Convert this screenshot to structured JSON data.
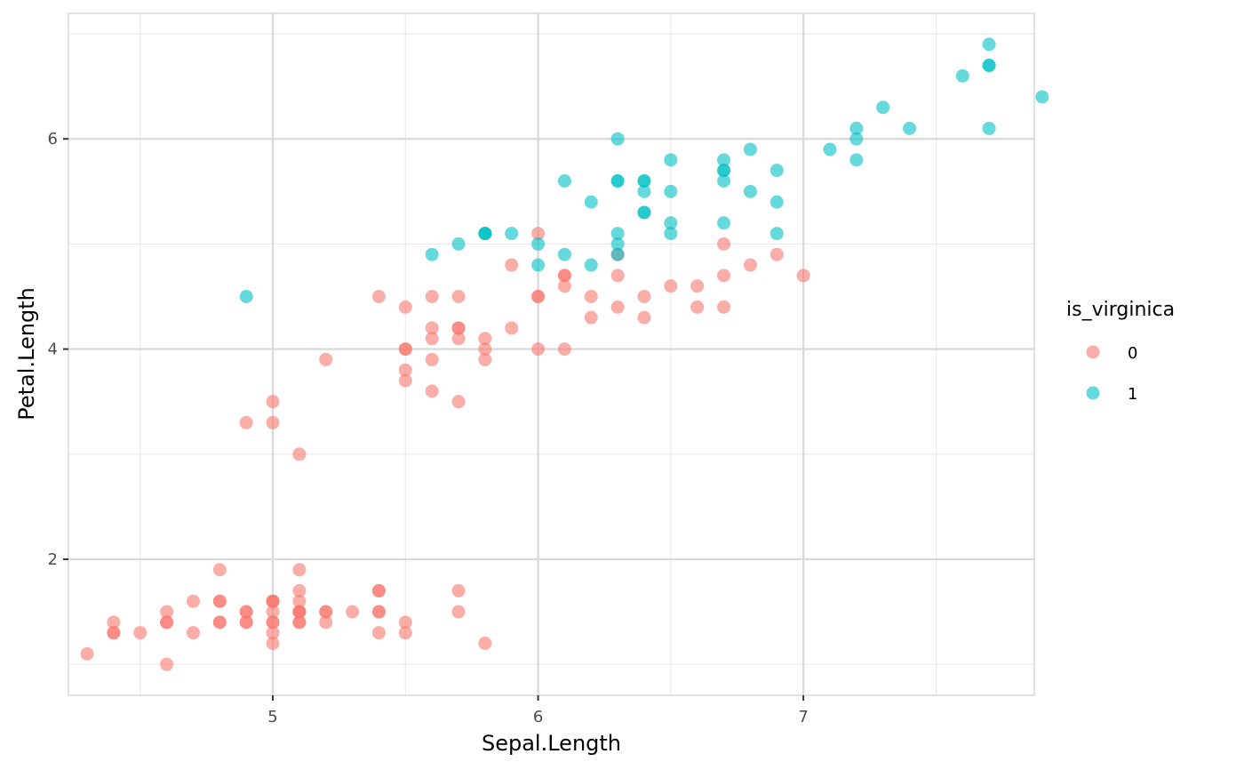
{
  "chart_data": {
    "type": "scatter",
    "xlabel": "Sepal.Length",
    "ylabel": "Petal.Length",
    "xlim": [
      4.2295,
      7.8705
    ],
    "ylim": [
      0.705,
      7.195
    ],
    "xticks": [
      5,
      6,
      7
    ],
    "yticks": [
      2,
      4,
      6
    ],
    "x_minor": [
      4.5,
      5.5,
      6.5,
      7.5
    ],
    "y_minor": [
      1,
      3,
      5,
      7
    ],
    "grid": true,
    "legend": {
      "title": "is_virginica",
      "position": "right",
      "entries": [
        "0",
        "1"
      ]
    },
    "point_opacity": 0.6,
    "series": [
      {
        "name": "0",
        "color": "#F8766D",
        "points": [
          [
            5.1,
            1.4
          ],
          [
            4.9,
            1.4
          ],
          [
            4.7,
            1.3
          ],
          [
            4.6,
            1.5
          ],
          [
            5.0,
            1.4
          ],
          [
            5.4,
            1.7
          ],
          [
            4.6,
            1.4
          ],
          [
            5.0,
            1.5
          ],
          [
            4.4,
            1.4
          ],
          [
            4.9,
            1.5
          ],
          [
            5.4,
            1.5
          ],
          [
            4.8,
            1.6
          ],
          [
            4.8,
            1.4
          ],
          [
            4.3,
            1.1
          ],
          [
            5.8,
            1.2
          ],
          [
            5.7,
            1.5
          ],
          [
            5.4,
            1.3
          ],
          [
            5.1,
            1.4
          ],
          [
            5.7,
            1.7
          ],
          [
            5.1,
            1.5
          ],
          [
            5.4,
            1.7
          ],
          [
            5.1,
            1.5
          ],
          [
            4.6,
            1.0
          ],
          [
            5.1,
            1.7
          ],
          [
            4.8,
            1.9
          ],
          [
            5.0,
            1.6
          ],
          [
            5.0,
            1.6
          ],
          [
            5.2,
            1.5
          ],
          [
            5.2,
            1.4
          ],
          [
            4.7,
            1.6
          ],
          [
            4.8,
            1.6
          ],
          [
            5.4,
            1.5
          ],
          [
            5.2,
            1.5
          ],
          [
            5.5,
            1.4
          ],
          [
            4.9,
            1.5
          ],
          [
            5.0,
            1.2
          ],
          [
            5.5,
            1.3
          ],
          [
            4.9,
            1.4
          ],
          [
            4.4,
            1.3
          ],
          [
            5.1,
            1.5
          ],
          [
            5.0,
            1.3
          ],
          [
            4.5,
            1.3
          ],
          [
            4.4,
            1.3
          ],
          [
            5.0,
            1.6
          ],
          [
            5.1,
            1.9
          ],
          [
            4.8,
            1.4
          ],
          [
            5.1,
            1.6
          ],
          [
            4.6,
            1.4
          ],
          [
            5.3,
            1.5
          ],
          [
            5.0,
            1.4
          ],
          [
            7.0,
            4.7
          ],
          [
            6.4,
            4.5
          ],
          [
            6.9,
            4.9
          ],
          [
            5.5,
            4.0
          ],
          [
            6.5,
            4.6
          ],
          [
            5.7,
            4.5
          ],
          [
            6.3,
            4.7
          ],
          [
            4.9,
            3.3
          ],
          [
            6.6,
            4.6
          ],
          [
            5.2,
            3.9
          ],
          [
            5.0,
            3.5
          ],
          [
            5.9,
            4.2
          ],
          [
            6.0,
            4.0
          ],
          [
            6.1,
            4.7
          ],
          [
            5.6,
            3.6
          ],
          [
            6.7,
            4.4
          ],
          [
            5.6,
            4.5
          ],
          [
            5.8,
            4.1
          ],
          [
            6.2,
            4.5
          ],
          [
            5.6,
            3.9
          ],
          [
            5.9,
            4.8
          ],
          [
            6.1,
            4.0
          ],
          [
            6.3,
            4.9
          ],
          [
            6.1,
            4.7
          ],
          [
            6.4,
            4.3
          ],
          [
            6.6,
            4.4
          ],
          [
            6.8,
            4.8
          ],
          [
            6.7,
            5.0
          ],
          [
            6.0,
            4.5
          ],
          [
            5.7,
            3.5
          ],
          [
            5.5,
            3.8
          ],
          [
            5.5,
            3.7
          ],
          [
            5.8,
            3.9
          ],
          [
            6.0,
            5.1
          ],
          [
            5.4,
            4.5
          ],
          [
            6.0,
            4.5
          ],
          [
            6.7,
            4.7
          ],
          [
            6.3,
            4.4
          ],
          [
            5.6,
            4.1
          ],
          [
            5.5,
            4.0
          ],
          [
            5.5,
            4.4
          ],
          [
            6.1,
            4.6
          ],
          [
            5.8,
            4.0
          ],
          [
            5.0,
            3.3
          ],
          [
            5.6,
            4.2
          ],
          [
            5.7,
            4.2
          ],
          [
            5.7,
            4.2
          ],
          [
            6.2,
            4.3
          ],
          [
            5.1,
            3.0
          ],
          [
            5.7,
            4.1
          ]
        ]
      },
      {
        "name": "1",
        "color": "#00BFC4",
        "points": [
          [
            6.3,
            6.0
          ],
          [
            5.8,
            5.1
          ],
          [
            7.1,
            5.9
          ],
          [
            6.3,
            5.6
          ],
          [
            6.5,
            5.8
          ],
          [
            7.6,
            6.6
          ],
          [
            4.9,
            4.5
          ],
          [
            7.3,
            6.3
          ],
          [
            6.7,
            5.8
          ],
          [
            7.2,
            6.1
          ],
          [
            6.5,
            5.1
          ],
          [
            6.4,
            5.3
          ],
          [
            6.8,
            5.5
          ],
          [
            5.7,
            5.0
          ],
          [
            5.8,
            5.1
          ],
          [
            6.4,
            5.3
          ],
          [
            6.5,
            5.5
          ],
          [
            7.7,
            6.7
          ],
          [
            7.7,
            6.9
          ],
          [
            6.0,
            5.0
          ],
          [
            6.9,
            5.7
          ],
          [
            5.6,
            4.9
          ],
          [
            7.7,
            6.7
          ],
          [
            6.3,
            4.9
          ],
          [
            6.7,
            5.7
          ],
          [
            7.2,
            6.0
          ],
          [
            6.2,
            4.8
          ],
          [
            6.1,
            4.9
          ],
          [
            6.4,
            5.6
          ],
          [
            7.2,
            5.8
          ],
          [
            7.4,
            6.1
          ],
          [
            7.9,
            6.4
          ],
          [
            6.4,
            5.6
          ],
          [
            6.3,
            5.1
          ],
          [
            6.1,
            5.6
          ],
          [
            7.7,
            6.1
          ],
          [
            6.3,
            5.6
          ],
          [
            6.4,
            5.5
          ],
          [
            6.0,
            4.8
          ],
          [
            6.9,
            5.4
          ],
          [
            6.7,
            5.6
          ],
          [
            6.9,
            5.1
          ],
          [
            5.8,
            5.1
          ],
          [
            6.8,
            5.9
          ],
          [
            6.7,
            5.7
          ],
          [
            6.7,
            5.2
          ],
          [
            6.3,
            5.0
          ],
          [
            6.5,
            5.2
          ],
          [
            6.2,
            5.4
          ],
          [
            5.9,
            5.1
          ]
        ]
      }
    ]
  }
}
